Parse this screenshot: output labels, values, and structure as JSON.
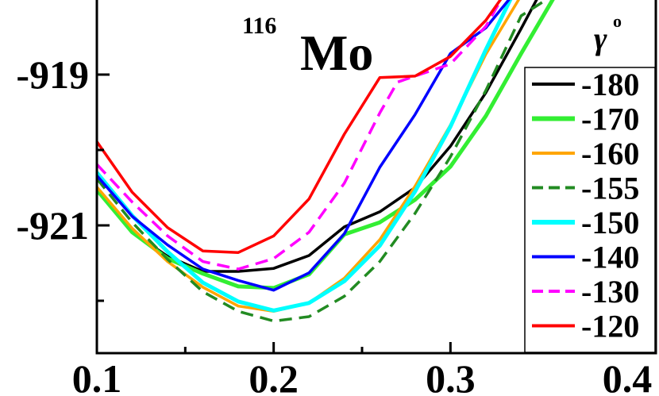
{
  "chart_data": {
    "type": "line",
    "title_super": "116",
    "title_main": "Mo",
    "legend_title_symbol": "γ",
    "legend_title_super": "o",
    "xlim": [
      0.1,
      0.4
    ],
    "ylim": [
      -922.75,
      -918.0
    ],
    "xticks": [
      0.1,
      0.2,
      0.3,
      0.4
    ],
    "xtick_labels": [
      "0.1",
      "0.2",
      "0.3",
      "0.4"
    ],
    "yticks": [
      -919,
      -921
    ],
    "ytick_labels": [
      "-919",
      "-921"
    ],
    "xminor": [
      0.15,
      0.25,
      0.35
    ],
    "yminor": [
      -920,
      -922
    ],
    "series": [
      {
        "name": "-180",
        "color": "#000000",
        "dash": "solid",
        "x": [
          0.1,
          0.12,
          0.14,
          0.16,
          0.18,
          0.2,
          0.22,
          0.24,
          0.26,
          0.28,
          0.3,
          0.32,
          0.34,
          0.35
        ],
        "y": [
          -920.53,
          -921.09,
          -921.41,
          -921.61,
          -921.61,
          -921.57,
          -921.4,
          -921.02,
          -920.82,
          -920.5,
          -919.95,
          -919.24,
          -918.39,
          -917.95
        ]
      },
      {
        "name": "-170",
        "color": "#33ee33",
        "dash": "solid",
        "x": [
          0.1,
          0.12,
          0.14,
          0.16,
          0.18,
          0.2,
          0.22,
          0.24,
          0.26,
          0.28,
          0.3,
          0.32,
          0.34,
          0.36
        ],
        "y": [
          -920.53,
          -921.09,
          -921.44,
          -921.64,
          -921.81,
          -921.83,
          -921.65,
          -921.12,
          -920.96,
          -920.66,
          -920.22,
          -919.55,
          -918.72,
          -917.92
        ]
      },
      {
        "name": "-160",
        "color": "#ffa500",
        "dash": "solid",
        "x": [
          0.1,
          0.12,
          0.14,
          0.16,
          0.18,
          0.2,
          0.22,
          0.24,
          0.26,
          0.28,
          0.3,
          0.32,
          0.34
        ],
        "y": [
          -920.49,
          -921.04,
          -921.48,
          -921.82,
          -922.07,
          -922.14,
          -922.03,
          -921.7,
          -921.19,
          -920.48,
          -919.67,
          -918.73,
          -917.95
        ]
      },
      {
        "name": "-155",
        "color": "#228b22",
        "dash": "dashed",
        "x": [
          0.1,
          0.12,
          0.14,
          0.16,
          0.18,
          0.2,
          0.22,
          0.24,
          0.26,
          0.28,
          0.3,
          0.32,
          0.34,
          0.36
        ],
        "y": [
          -920.38,
          -920.96,
          -921.45,
          -921.88,
          -922.14,
          -922.27,
          -922.21,
          -921.94,
          -921.48,
          -920.84,
          -920.09,
          -919.21,
          -918.22,
          -917.92
        ]
      },
      {
        "name": "-150",
        "color": "#00ffff",
        "dash": "solid",
        "x": [
          0.1,
          0.12,
          0.14,
          0.16,
          0.18,
          0.2,
          0.22,
          0.24,
          0.26,
          0.28,
          0.3,
          0.32,
          0.335
        ],
        "y": [
          -920.3,
          -920.87,
          -921.35,
          -921.76,
          -922.01,
          -922.13,
          -922.03,
          -921.74,
          -921.27,
          -920.55,
          -919.69,
          -918.67,
          -917.95
        ]
      },
      {
        "name": "-140",
        "color": "#0000ff",
        "dash": "solid",
        "x": [
          0.1,
          0.12,
          0.14,
          0.16,
          0.18,
          0.2,
          0.22,
          0.24,
          0.26,
          0.28,
          0.3,
          0.32,
          0.335
        ],
        "y": [
          -920.34,
          -920.88,
          -921.26,
          -921.58,
          -921.73,
          -921.86,
          -921.63,
          -921.11,
          -920.23,
          -919.53,
          -918.72,
          -918.38,
          -917.95
        ]
      },
      {
        "name": "-130",
        "color": "#ff00ff",
        "dash": "dashed",
        "x": [
          0.1,
          0.12,
          0.14,
          0.16,
          0.18,
          0.2,
          0.22,
          0.24,
          0.26,
          0.27,
          0.28,
          0.3,
          0.32,
          0.33
        ],
        "y": [
          -920.19,
          -920.69,
          -921.14,
          -921.48,
          -921.58,
          -921.44,
          -921.09,
          -920.44,
          -919.51,
          -919.1,
          -919.02,
          -918.86,
          -918.36,
          -917.95
        ]
      },
      {
        "name": "-120",
        "color": "#ff0000",
        "dash": "solid",
        "x": [
          0.1,
          0.12,
          0.14,
          0.16,
          0.18,
          0.2,
          0.22,
          0.24,
          0.26,
          0.28,
          0.3,
          0.32,
          0.33
        ],
        "y": [
          -919.89,
          -920.56,
          -921.03,
          -921.34,
          -921.36,
          -921.14,
          -920.65,
          -919.79,
          -919.04,
          -919.02,
          -918.76,
          -918.28,
          -917.95
        ]
      }
    ]
  }
}
